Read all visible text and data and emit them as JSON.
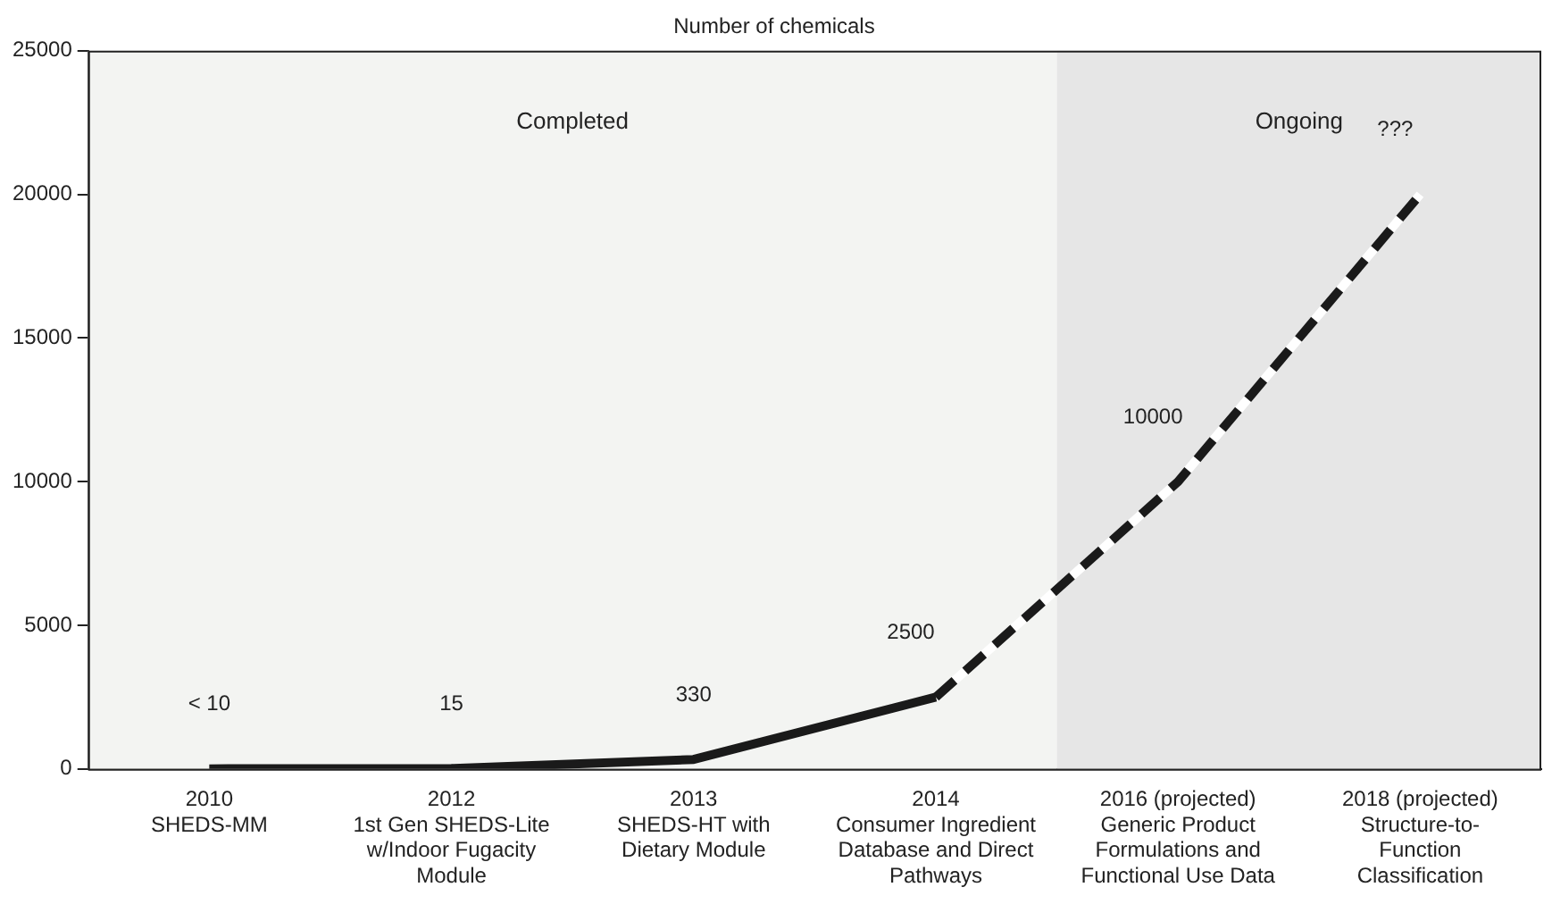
{
  "chart_data": {
    "type": "line",
    "title": "Number of chemicals",
    "categories": [
      "2010\nSHEDS-MM",
      "2012\n1st Gen SHEDS-Lite\nw/Indoor Fugacity\nModule",
      "2013\nSHEDS-HT with\nDietary Module",
      "2014\nConsumer Ingredient\nDatabase and Direct\nPathways",
      "2016 (projected)\nGeneric Product\nFormulations and\nFunctional Use Data",
      "2018 (projected)\nStructure-to-\nFunction\nClassification"
    ],
    "series": [
      {
        "color": "#1a1a1a",
        "line_style": "solid",
        "values": [
          5,
          15,
          330,
          2500,
          null,
          null
        ],
        "value_labels": [
          "< 10",
          "15",
          "330",
          "2500",
          null,
          null
        ]
      },
      {
        "color": "#1a1a1a",
        "line_style": "dashed",
        "values": [
          null,
          null,
          null,
          2500,
          10000,
          20000
        ],
        "value_labels": [
          null,
          null,
          null,
          null,
          "10000",
          "???"
        ]
      }
    ],
    "ylim": [
      0,
      25000
    ],
    "yticks": [
      0,
      5000,
      10000,
      15000,
      20000,
      25000
    ],
    "grid": false,
    "legend": false,
    "marker": "none",
    "bands": [
      {
        "axis": "x",
        "from": "2010\nSHEDS-MM",
        "to": "2014\nConsumer Ingredient\nDatabase and Direct\nPathways",
        "label": "Completed",
        "color": "#f3f4f2"
      },
      {
        "axis": "x",
        "from": "2016 (projected)\nGeneric Product\nFormulations and\nFunctional Use Data",
        "to": "2018 (projected)\nStructure-to-\nFunction\nClassification",
        "label": "Ongoing",
        "color": "#e6e6e6"
      }
    ]
  }
}
